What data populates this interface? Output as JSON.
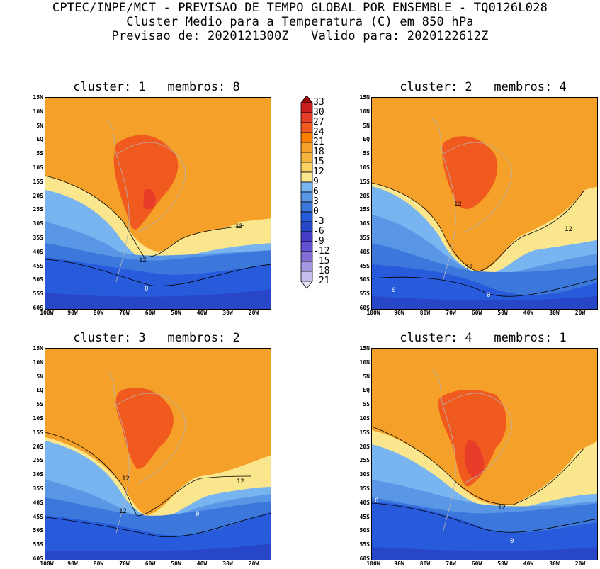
{
  "header": {
    "line1": "CPTEC/INPE/MCT - PREVISAO DE TEMPO GLOBAL POR ENSEMBLE - TQ0126L028",
    "line2": "Cluster Medio para a Temperatura (C) em 850 hPa",
    "line3": "Previsao de: 2020121300Z   Valido para: 2020122612Z"
  },
  "panels": [
    {
      "title": "cluster: 1   membros: 8",
      "contour_labels": [
        "12",
        "12",
        "0"
      ]
    },
    {
      "title": "cluster: 2   membros: 4",
      "contour_labels": [
        "12",
        "12",
        "12",
        "0",
        "0"
      ]
    },
    {
      "title": "cluster: 3   membros: 2",
      "contour_labels": [
        "12",
        "12",
        "12",
        "0"
      ]
    },
    {
      "title": "cluster: 4   membros: 1",
      "contour_labels": [
        "12",
        "0",
        "0"
      ]
    }
  ],
  "axes": {
    "lat_labels": [
      "15N",
      "10N",
      "5N",
      "EQ",
      "5S",
      "10S",
      "15S",
      "20S",
      "25S",
      "30S",
      "35S",
      "40S",
      "45S",
      "50S",
      "55S",
      "60S"
    ],
    "lon_labels": [
      "100W",
      "90W",
      "80W",
      "70W",
      "60W",
      "50W",
      "40W",
      "30W",
      "20W"
    ]
  },
  "colorbar": {
    "labels": [
      "33",
      "30",
      "27",
      "24",
      "21",
      "18",
      "15",
      "12",
      "9",
      "6",
      "3",
      "0",
      "-3",
      "-6",
      "-9",
      "-12",
      "-15",
      "-18",
      "-21"
    ],
    "colors": [
      "#a00000",
      "#c81e1e",
      "#e63c28",
      "#f05a1e",
      "#ff7f00",
      "#f5a028",
      "#f7b43c",
      "#fad264",
      "#fae68c",
      "#78b4f0",
      "#5a96e6",
      "#3c78dc",
      "#285adc",
      "#2846c8",
      "#463cc8",
      "#6450d2",
      "#826ed2",
      "#a596e1",
      "#c8beee",
      "#e6e1f5"
    ]
  }
}
